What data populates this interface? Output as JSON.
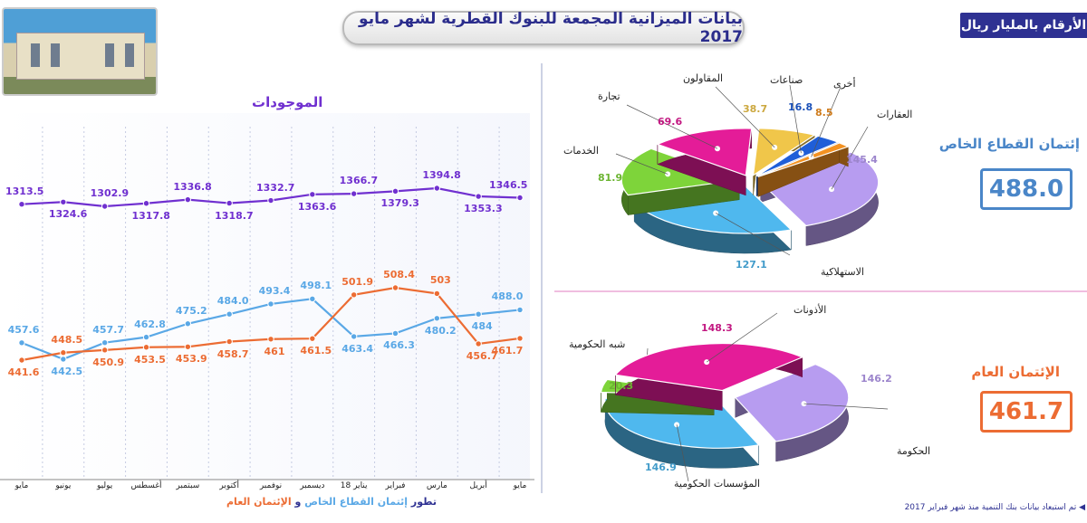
{
  "page": {
    "title": "بيانات الميزانية المجمعة للبنوك القطرية لشهر مايو 2017",
    "unit": "الأرقام بالمليار ريال",
    "footnote": "تم استبعاد بيانات بنك التنمية منذ شهر فبراير 2017",
    "colors": {
      "navy": "#2e3192",
      "purple": "#7030d0",
      "blue": "#5aa8e6",
      "orange": "#ec6c33"
    }
  },
  "private_credit": {
    "title": "إئتمان القطاع الخاص",
    "total": "488.0",
    "color": "#4a86c8"
  },
  "public_credit": {
    "title": "الإئتمان العام",
    "total": "461.7",
    "color": "#ec6c33"
  },
  "line_chart": {
    "assets_title": "الموجودات",
    "subtitle_prefix": "تطور",
    "subtitle_private": "إئتمان القطاع الخاص",
    "subtitle_and": "و",
    "subtitle_public": "الإئتمان العام"
  },
  "chart_data": [
    {
      "type": "line",
      "categories": [
        "مايو",
        "يونيو",
        "يوليو",
        "أغسطس",
        "سبتمبر",
        "أكتوبر",
        "نوفمبر",
        "ديسمبر",
        "يناير 18",
        "فبراير",
        "مارس",
        "أبريل",
        "مايو"
      ],
      "series": [
        {
          "name": "الموجودات",
          "values": [
            1313.5,
            1324.6,
            1302.9,
            1317.8,
            1336.8,
            1318.7,
            1332.7,
            1363.6,
            1366.7,
            1379.3,
            1394.8,
            1353.3,
            1346.5
          ],
          "labels": [
            "1313.5",
            "1324.6",
            "1302.9",
            "1317.8",
            "1336.8",
            "1318.7",
            "1332.7",
            "1363.6",
            "1366.7",
            "1379.3",
            "1394.8",
            "1353.3",
            "1346.5"
          ]
        },
        {
          "name": "إئتمان القطاع الخاص",
          "values": [
            457.6,
            442.5,
            457.7,
            462.8,
            475.2,
            484.0,
            493.4,
            498.1,
            463.4,
            466.3,
            480.2,
            484,
            488.0
          ],
          "labels": [
            "457.6",
            "442.5",
            "457.7",
            "462.8",
            "475.2",
            "484.0",
            "493.4",
            "498.1",
            "463.4",
            "466.3",
            "480.2",
            "484",
            "488.0"
          ]
        },
        {
          "name": "الإئتمان العام",
          "values": [
            441.6,
            448.5,
            450.9,
            453.5,
            453.9,
            458.7,
            461,
            461.5,
            501.9,
            508.4,
            503,
            456.7,
            461.7
          ],
          "labels": [
            "441.6",
            "448.5",
            "450.9",
            "453.5",
            "453.9",
            "458.7",
            "461",
            "461.5",
            "501.9",
            "508.4",
            "503",
            "456.7",
            "461.7"
          ]
        }
      ]
    },
    {
      "type": "pie",
      "title": "إئتمان القطاع الخاص",
      "slices": [
        {
          "label": "العقارات",
          "value": 145.4,
          "value_label": "145.4",
          "color": "#b79cf0"
        },
        {
          "label": "الاستهلاكية",
          "value": 127.1,
          "value_label": "127.1",
          "color": "#4fb8ee"
        },
        {
          "label": "الخدمات",
          "value": 81.9,
          "value_label": "81.9",
          "color": "#7ed43a"
        },
        {
          "label": "تجارة",
          "value": 69.6,
          "value_label": "69.6",
          "color": "#e41c98"
        },
        {
          "label": "المقاولون",
          "value": 38.7,
          "value_label": "38.7",
          "color": "#f0c64a"
        },
        {
          "label": "صناعات",
          "value": 16.8,
          "value_label": "16.8",
          "color": "#1f5ed8"
        },
        {
          "label": "أخرى",
          "value": 8.5,
          "value_label": "8.5",
          "color": "#f39222"
        }
      ]
    },
    {
      "type": "pie",
      "title": "الإئتمان العام",
      "slices": [
        {
          "label": "الحكومة",
          "value": 146.2,
          "value_label": "146.2",
          "color": "#b79cf0"
        },
        {
          "label": "المؤسسات الحكومية",
          "value": 146.9,
          "value_label": "146.9",
          "color": "#4fb8ee"
        },
        {
          "label": "شبه الحكومية",
          "value": 20.3,
          "value_label": "20.3",
          "color": "#7ed43a"
        },
        {
          "label": "الأذونات",
          "value": 148.3,
          "value_label": "148.3",
          "color": "#e41c98"
        }
      ]
    }
  ]
}
